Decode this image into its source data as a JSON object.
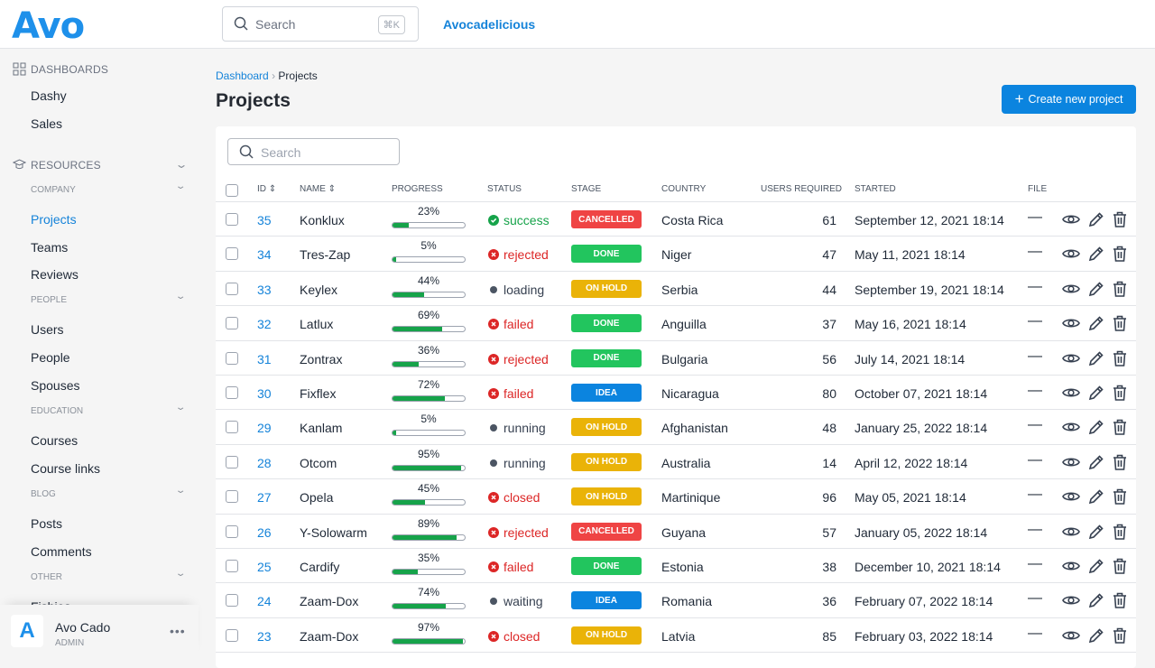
{
  "header": {
    "logo": "Avo",
    "search_placeholder": "Search",
    "shortcut": "⌘K",
    "brand": "Avocadelicious"
  },
  "sidebar": {
    "dashboards_label": "Dashboards",
    "dashboards": [
      "Dashy",
      "Sales"
    ],
    "resources_label": "Resources",
    "groups": [
      {
        "label": "Company",
        "items": [
          "Projects",
          "Teams",
          "Reviews"
        ]
      },
      {
        "label": "People",
        "items": [
          "Users",
          "People",
          "Spouses"
        ]
      },
      {
        "label": "Education",
        "items": [
          "Courses",
          "Course links"
        ]
      },
      {
        "label": "Blog",
        "items": [
          "Posts",
          "Comments"
        ]
      },
      {
        "label": "Other",
        "items": [
          "Fishies"
        ]
      }
    ],
    "active": "Projects",
    "user": {
      "name": "Avo Cado",
      "role": "ADMIN"
    }
  },
  "breadcrumb": {
    "root": "Dashboard",
    "current": "Projects"
  },
  "page": {
    "title": "Projects",
    "create_label": "Create new project",
    "search_placeholder": "Search"
  },
  "columns": [
    "ID",
    "Name",
    "Progress",
    "Status",
    "Stage",
    "Country",
    "Users required",
    "Started",
    "File"
  ],
  "colors": {
    "accent": "#1583d9",
    "success": "#16a34a",
    "danger": "#dc2626",
    "cancelled": "#ef4444",
    "done": "#22c55e",
    "on_hold": "#eab308",
    "idea": "#0b84df"
  },
  "rows": [
    {
      "id": "35",
      "name": "Konklux",
      "progress": 23,
      "progress_label": "23%",
      "status": "success",
      "stage": "CANCELLED",
      "country": "Costa Rica",
      "users": "61",
      "started": "September 12, 2021 18:14",
      "file": "—"
    },
    {
      "id": "34",
      "name": "Tres-Zap",
      "progress": 5,
      "progress_label": "5%",
      "status": "rejected",
      "stage": "DONE",
      "country": "Niger",
      "users": "47",
      "started": "May 11, 2021 18:14",
      "file": "—"
    },
    {
      "id": "33",
      "name": "Keylex",
      "progress": 44,
      "progress_label": "44%",
      "status": "loading",
      "stage": "ON HOLD",
      "country": "Serbia",
      "users": "44",
      "started": "September 19, 2021 18:14",
      "file": "—"
    },
    {
      "id": "32",
      "name": "Latlux",
      "progress": 69,
      "progress_label": "69%",
      "status": "failed",
      "stage": "DONE",
      "country": "Anguilla",
      "users": "37",
      "started": "May 16, 2021 18:14",
      "file": "—"
    },
    {
      "id": "31",
      "name": "Zontrax",
      "progress": 36,
      "progress_label": "36%",
      "status": "rejected",
      "stage": "DONE",
      "country": "Bulgaria",
      "users": "56",
      "started": "July 14, 2021 18:14",
      "file": "—"
    },
    {
      "id": "30",
      "name": "Fixflex",
      "progress": 72,
      "progress_label": "72%",
      "status": "failed",
      "stage": "IDEA",
      "country": "Nicaragua",
      "users": "80",
      "started": "October 07, 2021 18:14",
      "file": "—"
    },
    {
      "id": "29",
      "name": "Kanlam",
      "progress": 5,
      "progress_label": "5%",
      "status": "running",
      "stage": "ON HOLD",
      "country": "Afghanistan",
      "users": "48",
      "started": "January 25, 2022 18:14",
      "file": "—"
    },
    {
      "id": "28",
      "name": "Otcom",
      "progress": 95,
      "progress_label": "95%",
      "status": "running",
      "stage": "ON HOLD",
      "country": "Australia",
      "users": "14",
      "started": "April 12, 2022 18:14",
      "file": "—"
    },
    {
      "id": "27",
      "name": "Opela",
      "progress": 45,
      "progress_label": "45%",
      "status": "closed",
      "stage": "ON HOLD",
      "country": "Martinique",
      "users": "96",
      "started": "May 05, 2021 18:14",
      "file": "—"
    },
    {
      "id": "26",
      "name": "Y-Solowarm",
      "progress": 89,
      "progress_label": "89%",
      "status": "rejected",
      "stage": "CANCELLED",
      "country": "Guyana",
      "users": "57",
      "started": "January 05, 2022 18:14",
      "file": "—"
    },
    {
      "id": "25",
      "name": "Cardify",
      "progress": 35,
      "progress_label": "35%",
      "status": "failed",
      "stage": "DONE",
      "country": "Estonia",
      "users": "38",
      "started": "December 10, 2021 18:14",
      "file": "—"
    },
    {
      "id": "24",
      "name": "Zaam-Dox",
      "progress": 74,
      "progress_label": "74%",
      "status": "waiting",
      "stage": "IDEA",
      "country": "Romania",
      "users": "36",
      "started": "February 07, 2022 18:14",
      "file": "—"
    },
    {
      "id": "23",
      "name": "Zaam-Dox",
      "progress": 97,
      "progress_label": "97%",
      "status": "closed",
      "stage": "ON HOLD",
      "country": "Latvia",
      "users": "85",
      "started": "February 03, 2022 18:14",
      "file": "—"
    }
  ]
}
